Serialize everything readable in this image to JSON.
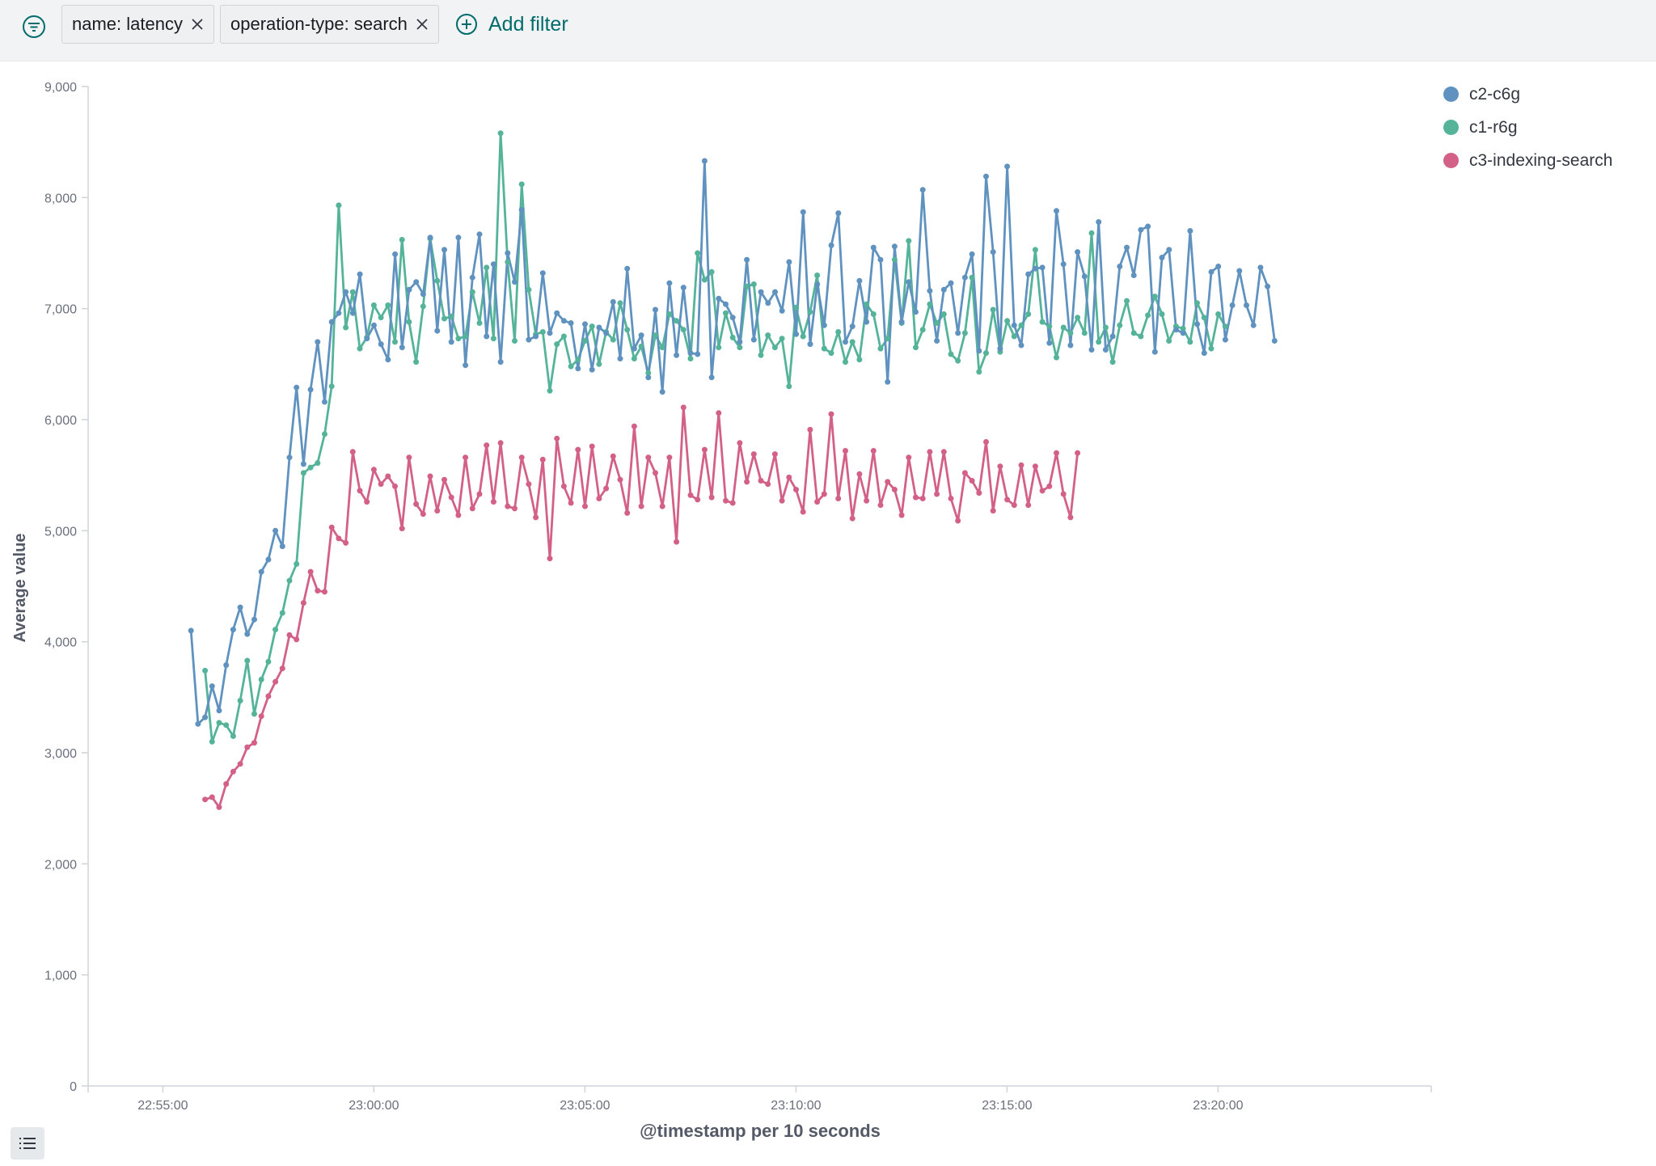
{
  "filters": {
    "pills": [
      {
        "label": "name: latency"
      },
      {
        "label": "operation-type: search"
      }
    ],
    "add_filter_label": "Add filter"
  },
  "colors": {
    "c2-c6g": "#6092c0",
    "c1-r6g": "#54b399",
    "c3-indexing-search": "#d36086",
    "axis": "#cfd4d9",
    "tick_text": "#69707d",
    "axis_title": "#535966",
    "filter_accent": "#006b6b"
  },
  "chart_data": {
    "type": "line",
    "xlabel": "@timestamp per 10 seconds",
    "ylabel": "Average value",
    "ylim": [
      0,
      9000
    ],
    "yticks": [
      0,
      1000,
      2000,
      3000,
      4000,
      5000,
      6000,
      7000,
      8000,
      9000
    ],
    "ytick_labels": [
      "0",
      "1,000",
      "2,000",
      "3,000",
      "4,000",
      "5,000",
      "6,000",
      "7,000",
      "8,000",
      "9,000"
    ],
    "x_unit": "minutes since 22:50:00",
    "xlim": [
      3.23,
      35.05
    ],
    "xticks": [
      5,
      10,
      15,
      20,
      25,
      30
    ],
    "xtick_labels": [
      "22:55:00",
      "23:00:00",
      "23:05:00",
      "23:10:00",
      "23:15:00",
      "23:20:00"
    ],
    "legend_position": "top-right",
    "series": [
      {
        "name": "c2-c6g",
        "x_start": 5.667,
        "x_step": 0.1667,
        "values": [
          4100,
          3260,
          3320,
          3600,
          3380,
          3790,
          4110,
          4310,
          4070,
          4200,
          4630,
          4740,
          5000,
          4860,
          5660,
          6290,
          5600,
          6270,
          6700,
          6160,
          6880,
          6960,
          7150,
          6960,
          7310,
          6730,
          6850,
          6680,
          6540,
          7490,
          6650,
          7170,
          7240,
          7130,
          7640,
          6800,
          7530,
          6700,
          7640,
          6490,
          7280,
          7670,
          6750,
          7400,
          6520,
          7500,
          7240,
          7890,
          6720,
          6750,
          7320,
          6780,
          6960,
          6890,
          6870,
          6460,
          6860,
          6450,
          6830,
          6780,
          7060,
          6550,
          7360,
          6640,
          6760,
          6380,
          6990,
          6250,
          7230,
          6580,
          7190,
          6600,
          6590,
          8330,
          6380,
          7090,
          7040,
          6920,
          6700,
          7440,
          6720,
          7150,
          7050,
          7150,
          6980,
          7420,
          6770,
          7870,
          6680,
          7220,
          6850,
          7570,
          7860,
          6700,
          6840,
          7250,
          6880,
          7550,
          7440,
          6340,
          7560,
          6880,
          7240,
          6970,
          8070,
          7160,
          6710,
          7170,
          7230,
          6780,
          7280,
          7490,
          6620,
          8190,
          7510,
          6640,
          8280,
          6850,
          6670,
          7310,
          7360,
          7370,
          6690,
          7880,
          7400,
          6670,
          7510,
          7290,
          6630,
          7780,
          6630,
          6750,
          7380,
          7550,
          7300,
          7710,
          7740,
          6610,
          7460,
          7530,
          6810,
          6780,
          7700,
          6860,
          6600,
          7330,
          7380,
          6720,
          7030,
          7340,
          7030,
          6850,
          7370,
          7200,
          6710
        ]
      },
      {
        "name": "c1-r6g",
        "x_start": 6.0,
        "x_step": 0.1667,
        "values": [
          3740,
          3100,
          3270,
          3250,
          3150,
          3470,
          3830,
          3350,
          3660,
          3820,
          4110,
          4260,
          4550,
          4700,
          5520,
          5570,
          5610,
          5870,
          6300,
          7930,
          6830,
          7150,
          6640,
          6740,
          7030,
          6920,
          7030,
          6700,
          7620,
          6880,
          6520,
          7020,
          7630,
          7250,
          6910,
          6930,
          6730,
          6750,
          7150,
          6870,
          7370,
          6730,
          8580,
          7420,
          6710,
          8120,
          7170,
          6770,
          6790,
          6260,
          6680,
          6750,
          6480,
          6540,
          6710,
          6840,
          6500,
          6790,
          6720,
          7050,
          6810,
          6550,
          6660,
          6420,
          6760,
          6650,
          6950,
          6890,
          6810,
          6550,
          7500,
          7260,
          7330,
          6650,
          6960,
          6740,
          6650,
          7200,
          7220,
          6580,
          6760,
          6650,
          6730,
          6300,
          7010,
          6750,
          6970,
          7300,
          6640,
          6600,
          6790,
          6520,
          6700,
          6540,
          7040,
          6950,
          6640,
          6730,
          7440,
          6870,
          7610,
          6650,
          6810,
          7040,
          6870,
          6950,
          6590,
          6530,
          6780,
          7280,
          6430,
          6600,
          6990,
          6610,
          6890,
          6750,
          6850,
          6950,
          7530,
          6880,
          6840,
          6560,
          6830,
          6780,
          6920,
          6780,
          7680,
          6700,
          6830,
          6520,
          6850,
          7070,
          6780,
          6750,
          6940,
          7110,
          6950,
          6710,
          6840,
          6820,
          6700,
          7050,
          6920,
          6640,
          6950,
          6840
        ]
      },
      {
        "name": "c3-indexing-search",
        "x_start": 6.0,
        "x_step": 0.1667,
        "values": [
          2580,
          2600,
          2510,
          2720,
          2830,
          2900,
          3050,
          3090,
          3330,
          3510,
          3640,
          3760,
          4060,
          4020,
          4350,
          4630,
          4460,
          4450,
          5030,
          4930,
          4890,
          5710,
          5360,
          5260,
          5550,
          5420,
          5490,
          5400,
          5020,
          5660,
          5240,
          5150,
          5490,
          5180,
          5460,
          5300,
          5140,
          5660,
          5200,
          5330,
          5770,
          5260,
          5790,
          5220,
          5200,
          5660,
          5420,
          5120,
          5640,
          4750,
          5830,
          5400,
          5250,
          5730,
          5220,
          5760,
          5290,
          5380,
          5670,
          5460,
          5160,
          5940,
          5220,
          5660,
          5520,
          5220,
          5660,
          4900,
          6110,
          5320,
          5280,
          5730,
          5300,
          6060,
          5270,
          5250,
          5790,
          5440,
          5690,
          5450,
          5420,
          5690,
          5270,
          5480,
          5370,
          5170,
          5910,
          5260,
          5330,
          6050,
          5290,
          5720,
          5110,
          5510,
          5270,
          5720,
          5230,
          5440,
          5370,
          5140,
          5660,
          5300,
          5290,
          5710,
          5330,
          5710,
          5290,
          5090,
          5520,
          5450,
          5340,
          5800,
          5180,
          5580,
          5280,
          5230,
          5590,
          5230,
          5580,
          5360,
          5400,
          5700,
          5330,
          5120,
          5700
        ]
      }
    ]
  }
}
